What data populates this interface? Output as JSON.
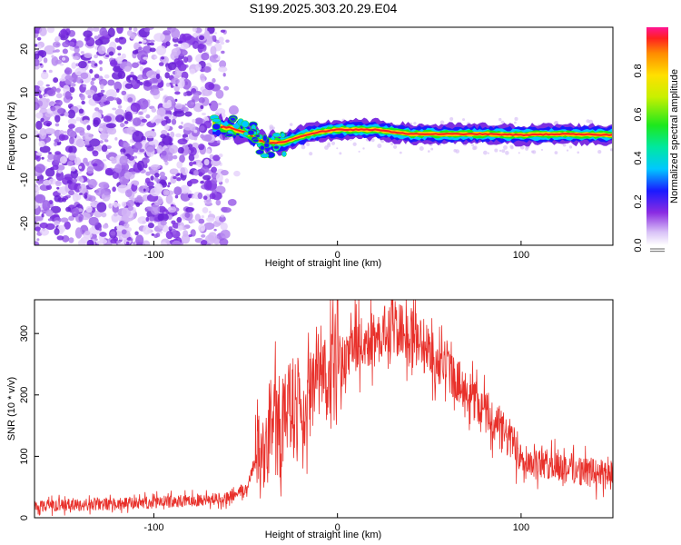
{
  "title": "S199.2025.303.20.29.E04",
  "chart_data": [
    {
      "type": "heatmap",
      "title": "S199.2025.303.20.29.E04",
      "xlabel": "Height of straight line (km)",
      "ylabel": "Frequency (Hz)",
      "xlim": [
        -165,
        150
      ],
      "ylim": [
        -25,
        25
      ],
      "xticks": [
        -100,
        0,
        100
      ],
      "yticks": [
        -20,
        -10,
        0,
        10,
        20
      ],
      "colorbar": {
        "label": "Normalized spectral amplitude",
        "range": [
          0,
          1
        ],
        "ticks": [
          0.0,
          0.2,
          0.4,
          0.6,
          0.8
        ]
      },
      "features": {
        "noise_region_x": [
          -165,
          -60
        ],
        "signal_track": {
          "x": [
            -68,
            -60,
            -50,
            -40,
            -30,
            -20,
            -10,
            0,
            10,
            20,
            40,
            60,
            80,
            100,
            120,
            150
          ],
          "y": [
            2.5,
            2.0,
            1.0,
            -1.5,
            -1.5,
            0,
            1.0,
            1.5,
            1.5,
            1.5,
            0.5,
            0.5,
            0.5,
            0.3,
            0.5,
            0.3
          ]
        }
      }
    },
    {
      "type": "line",
      "xlabel": "Height of straight line (km)",
      "ylabel": "SNR (10 * v/v)",
      "xlim": [
        -165,
        150
      ],
      "ylim": [
        0,
        355
      ],
      "xticks": [
        -100,
        0,
        100
      ],
      "yticks": [
        0,
        100,
        200,
        300
      ],
      "series": [
        {
          "name": "SNR",
          "color": "#e8302a",
          "envelope_x": [
            -165,
            -120,
            -80,
            -60,
            -50,
            -45,
            -40,
            -35,
            -30,
            -20,
            -10,
            0,
            10,
            20,
            30,
            35,
            40,
            50,
            60,
            70,
            80,
            90,
            100,
            105,
            120,
            135,
            150
          ],
          "envelope_y": [
            20,
            22,
            28,
            32,
            45,
            90,
            120,
            150,
            160,
            190,
            220,
            250,
            275,
            295,
            305,
            305,
            300,
            270,
            240,
            210,
            175,
            140,
            105,
            90,
            85,
            75,
            70
          ]
        }
      ]
    }
  ]
}
